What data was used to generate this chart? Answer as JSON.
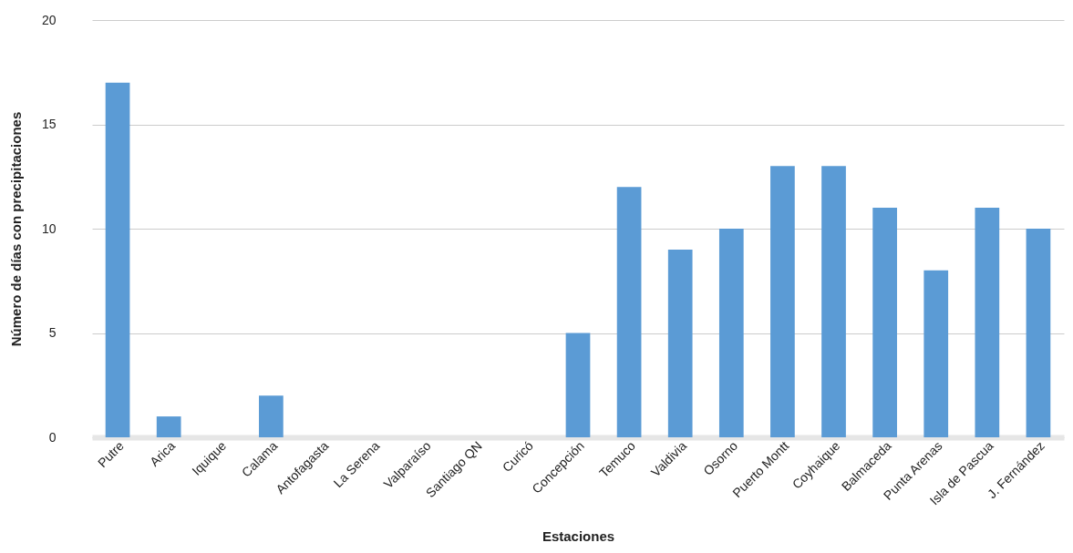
{
  "chart_data": {
    "type": "bar",
    "xlabel": "Estaciones",
    "ylabel": "Número de días con precipitaciones",
    "categories": [
      "Putre",
      "Arica",
      "Iquique",
      "Calama",
      "Antofagasta",
      "La Serena",
      "Valparaíso",
      "Santiago QN",
      "Curicó",
      "Concepción",
      "Temuco",
      "Valdivia",
      "Osorno",
      "Puerto Montt",
      "Coyhaique",
      "Balmaceda",
      "Punta Arenas",
      "Isla de Pascua",
      "J. Fernández"
    ],
    "values": [
      17,
      1,
      0,
      2,
      0,
      0,
      0,
      0,
      0,
      5,
      12,
      9,
      10,
      13,
      13,
      11,
      8,
      11,
      10
    ],
    "color": "#5b9bd5",
    "ylim": [
      0,
      20
    ],
    "yticks": [
      0,
      5,
      10,
      15,
      20
    ],
    "grid": "y"
  }
}
